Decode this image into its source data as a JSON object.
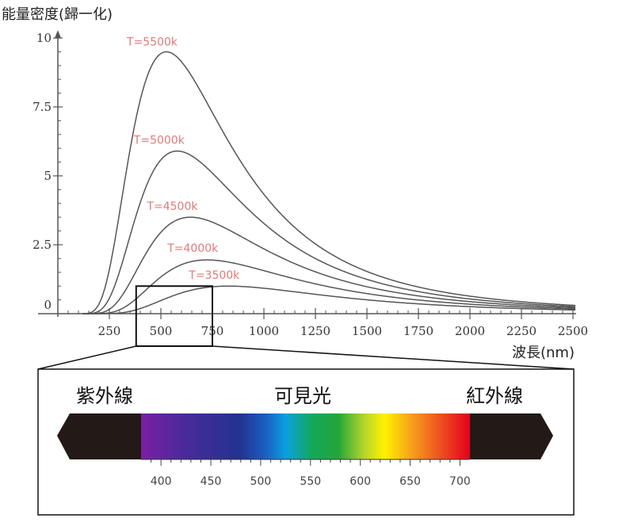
{
  "chart_data": {
    "type": "line",
    "ylabel": "能量密度(歸一化)",
    "xlabel": "波長(nm)",
    "xlim": [
      0,
      2600
    ],
    "ylim": [
      0,
      10
    ],
    "x_ticks": [
      250,
      500,
      750,
      1000,
      1250,
      1500,
      1750,
      2000,
      2250,
      2500
    ],
    "y_ticks": [
      {
        "value": 0,
        "label": "0"
      },
      {
        "value": 2.5,
        "label": "2.5"
      },
      {
        "value": 5,
        "label": "5"
      },
      {
        "value": 7.5,
        "label": "7.5"
      },
      {
        "value": 10,
        "label": "10"
      }
    ],
    "series": [
      {
        "name": "T=5500k",
        "temperature": 5500,
        "peak_wavelength": 527,
        "peak_value": 9.5
      },
      {
        "name": "T=5000k",
        "temperature": 5000,
        "peak_wavelength": 580,
        "peak_value": 5.9
      },
      {
        "name": "T=4500k",
        "temperature": 4500,
        "peak_wavelength": 644,
        "peak_value": 3.5
      },
      {
        "name": "T=4000k",
        "temperature": 4000,
        "peak_wavelength": 724,
        "peak_value": 1.95
      },
      {
        "name": "T=3500k",
        "temperature": 3500,
        "peak_wavelength": 828,
        "peak_value": 1.0
      }
    ],
    "zoom_box": {
      "x_range": [
        380,
        750
      ],
      "y_range": [
        0,
        1
      ]
    },
    "spectrum": {
      "labels": {
        "uv": "紫外線",
        "visible": "可見光",
        "ir": "紅外線"
      },
      "range": [
        380,
        710
      ],
      "ticks": [
        400,
        450,
        500,
        550,
        600,
        650,
        700
      ]
    }
  },
  "colors": {
    "curve": "#555555",
    "axis": "#555555",
    "temp_label": "#e07a7a",
    "black_band": "#231916"
  }
}
